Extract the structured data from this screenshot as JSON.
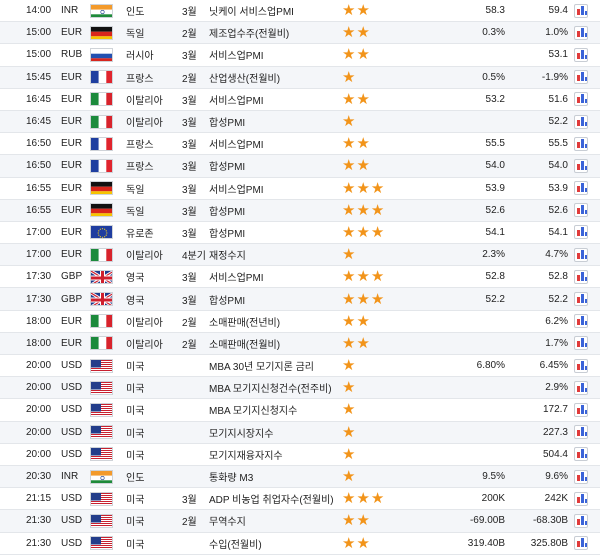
{
  "colors": {
    "row_alt": "#f4f6f9",
    "star": "#f2941a",
    "chart_red": "#e03b3b",
    "chart_blue": "#3a63d8"
  },
  "icons": {
    "importance": "star-icon",
    "chart": "chart-icon"
  },
  "rows": [
    {
      "time": "14:00",
      "currency": "INR",
      "flag": "india",
      "country": "인도",
      "month": "3월",
      "event": "닛케이 서비스업PMI",
      "stars": 2,
      "actual": "58.3",
      "forecast": "59.4"
    },
    {
      "time": "15:00",
      "currency": "EUR",
      "flag": "germany",
      "country": "독일",
      "month": "2월",
      "event": "제조업수주(전월비)",
      "stars": 2,
      "actual": "0.3%",
      "forecast": "1.0%"
    },
    {
      "time": "15:00",
      "currency": "RUB",
      "flag": "russia",
      "country": "러시아",
      "month": "3월",
      "event": "서비스업PMI",
      "stars": 2,
      "actual": "",
      "forecast": "53.1"
    },
    {
      "time": "15:45",
      "currency": "EUR",
      "flag": "france",
      "country": "프랑스",
      "month": "2월",
      "event": "산업생산(전월비)",
      "stars": 1,
      "actual": "0.5%",
      "forecast": "-1.9%"
    },
    {
      "time": "16:45",
      "currency": "EUR",
      "flag": "italy",
      "country": "이탈리아",
      "month": "3월",
      "event": "서비스업PMI",
      "stars": 2,
      "actual": "53.2",
      "forecast": "51.6"
    },
    {
      "time": "16:45",
      "currency": "EUR",
      "flag": "italy",
      "country": "이탈리아",
      "month": "3월",
      "event": "합성PMI",
      "stars": 1,
      "actual": "",
      "forecast": "52.2"
    },
    {
      "time": "16:50",
      "currency": "EUR",
      "flag": "france",
      "country": "프랑스",
      "month": "3월",
      "event": "서비스업PMI",
      "stars": 2,
      "actual": "55.5",
      "forecast": "55.5"
    },
    {
      "time": "16:50",
      "currency": "EUR",
      "flag": "france",
      "country": "프랑스",
      "month": "3월",
      "event": "합성PMI",
      "stars": 2,
      "actual": "54.0",
      "forecast": "54.0"
    },
    {
      "time": "16:55",
      "currency": "EUR",
      "flag": "germany",
      "country": "독일",
      "month": "3월",
      "event": "서비스업PMI",
      "stars": 3,
      "actual": "53.9",
      "forecast": "53.9"
    },
    {
      "time": "16:55",
      "currency": "EUR",
      "flag": "germany",
      "country": "독일",
      "month": "3월",
      "event": "합성PMI",
      "stars": 3,
      "actual": "52.6",
      "forecast": "52.6"
    },
    {
      "time": "17:00",
      "currency": "EUR",
      "flag": "eu",
      "country": "유로존",
      "month": "3월",
      "event": "합성PMI",
      "stars": 3,
      "actual": "54.1",
      "forecast": "54.1"
    },
    {
      "time": "17:00",
      "currency": "EUR",
      "flag": "italy",
      "country": "이탈리아",
      "month": "4분기",
      "event": "재정수지",
      "stars": 1,
      "actual": "2.3%",
      "forecast": "4.7%"
    },
    {
      "time": "17:30",
      "currency": "GBP",
      "flag": "uk",
      "country": "영국",
      "month": "3월",
      "event": "서비스업PMI",
      "stars": 3,
      "actual": "52.8",
      "forecast": "52.8"
    },
    {
      "time": "17:30",
      "currency": "GBP",
      "flag": "uk",
      "country": "영국",
      "month": "3월",
      "event": "합성PMI",
      "stars": 3,
      "actual": "52.2",
      "forecast": "52.2"
    },
    {
      "time": "18:00",
      "currency": "EUR",
      "flag": "italy",
      "country": "이탈리아",
      "month": "2월",
      "event": "소매판매(전년비)",
      "stars": 2,
      "actual": "",
      "forecast": "6.2%"
    },
    {
      "time": "18:00",
      "currency": "EUR",
      "flag": "italy",
      "country": "이탈리아",
      "month": "2월",
      "event": "소매판매(전월비)",
      "stars": 2,
      "actual": "",
      "forecast": "1.7%"
    },
    {
      "time": "20:00",
      "currency": "USD",
      "flag": "usa",
      "country": "미국",
      "month": "",
      "event": "MBA 30년 모기지론 금리",
      "stars": 1,
      "actual": "6.80%",
      "forecast": "6.45%"
    },
    {
      "time": "20:00",
      "currency": "USD",
      "flag": "usa",
      "country": "미국",
      "month": "",
      "event": "MBA 모기지신청건수(전주비)",
      "stars": 1,
      "actual": "",
      "forecast": "2.9%"
    },
    {
      "time": "20:00",
      "currency": "USD",
      "flag": "usa",
      "country": "미국",
      "month": "",
      "event": "MBA 모기지신청지수",
      "stars": 1,
      "actual": "",
      "forecast": "172.7"
    },
    {
      "time": "20:00",
      "currency": "USD",
      "flag": "usa",
      "country": "미국",
      "month": "",
      "event": "모기지시장지수",
      "stars": 1,
      "actual": "",
      "forecast": "227.3"
    },
    {
      "time": "20:00",
      "currency": "USD",
      "flag": "usa",
      "country": "미국",
      "month": "",
      "event": "모기지재융자지수",
      "stars": 1,
      "actual": "",
      "forecast": "504.4"
    },
    {
      "time": "20:30",
      "currency": "INR",
      "flag": "india",
      "country": "인도",
      "month": "",
      "event": "통화량 M3",
      "stars": 1,
      "actual": "9.5%",
      "forecast": "9.6%"
    },
    {
      "time": "21:15",
      "currency": "USD",
      "flag": "usa",
      "country": "미국",
      "month": "3월",
      "event": "ADP 비농업 취업자수(전월비)",
      "stars": 3,
      "actual": "200K",
      "forecast": "242K"
    },
    {
      "time": "21:30",
      "currency": "USD",
      "flag": "usa",
      "country": "미국",
      "month": "2월",
      "event": "무역수지",
      "stars": 2,
      "actual": "-69.00B",
      "forecast": "-68.30B"
    },
    {
      "time": "21:30",
      "currency": "USD",
      "flag": "usa",
      "country": "미국",
      "month": "",
      "event": "수입(전월비)",
      "stars": 2,
      "actual": "319.40B",
      "forecast": "325.80B"
    }
  ]
}
